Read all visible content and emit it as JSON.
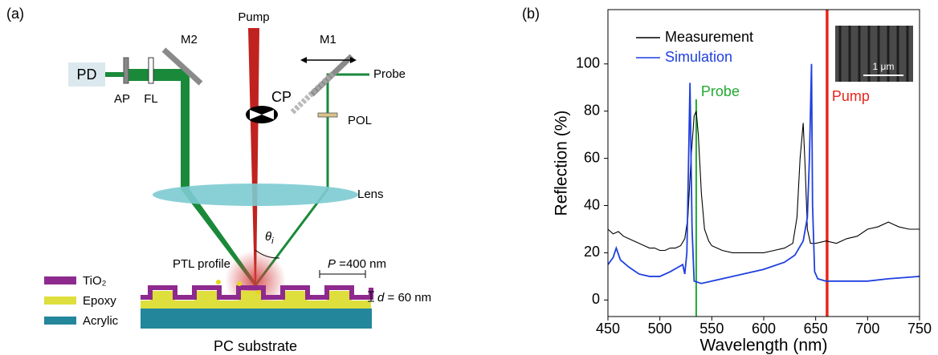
{
  "panel_a": {
    "panel_label": "(a)",
    "pump": "Pump",
    "probe": "Probe",
    "mirror_2": "M2",
    "mirror_1": "M1",
    "detector": "PD",
    "aperture": "AP",
    "filter": "FL",
    "chopper": "CP",
    "polarizer": "POL",
    "lens": "Lens",
    "angle": {
      "symbol": "θ",
      "subscript": "i"
    },
    "profile": "PTL profile",
    "period": {
      "var": "P",
      "text": " =400 nm"
    },
    "depth": {
      "var": "d",
      "text": " = 60 nm"
    },
    "layers": [
      "TiO₂",
      "Epoxy",
      "Acrylic"
    ],
    "substrate": "PC substrate"
  },
  "chart_data": {
    "type": "line",
    "panel_label": "(b)",
    "x_label": "Wavelength (nm)",
    "y_label": "Reflection (%)",
    "xlim": [
      450,
      750
    ],
    "xticks": [
      450,
      500,
      550,
      600,
      650,
      700,
      750
    ],
    "ylim": [
      -7,
      123
    ],
    "yticks": [
      0,
      20,
      40,
      60,
      80,
      100
    ],
    "legend": "upper left",
    "series": [
      {
        "name": "Measurement",
        "color": "#000000",
        "x": [
          450,
          455,
          460,
          465,
          470,
          475,
          480,
          485,
          490,
          495,
          500,
          505,
          510,
          515,
          520,
          524,
          527,
          530,
          533,
          535,
          537,
          540,
          543,
          547,
          550,
          555,
          560,
          570,
          580,
          590,
          600,
          610,
          620,
          628,
          632,
          635,
          638,
          640,
          642,
          645,
          650,
          660,
          670,
          680,
          690,
          700,
          710,
          720,
          725,
          730,
          740,
          750
        ],
        "values": [
          30,
          28,
          29,
          27,
          26,
          25,
          24,
          23,
          22,
          22,
          21,
          21,
          22,
          22,
          23,
          26,
          35,
          60,
          78,
          80,
          70,
          45,
          30,
          25,
          23,
          22,
          21,
          20,
          20,
          20,
          20,
          21,
          22,
          24,
          35,
          60,
          75,
          55,
          30,
          24,
          24,
          25,
          24,
          26,
          27,
          30,
          31,
          33,
          32,
          31,
          30,
          30
        ]
      },
      {
        "name": "Simulation",
        "color": "#1f3fe0",
        "x": [
          450,
          455,
          458,
          462,
          470,
          480,
          490,
          500,
          510,
          518,
          522,
          524,
          526,
          529,
          531,
          533,
          540,
          560,
          580,
          600,
          620,
          630,
          638,
          642,
          644,
          646,
          647,
          649,
          652,
          660,
          680,
          700,
          720,
          750
        ],
        "values": [
          15,
          18,
          22,
          17,
          14,
          11,
          10,
          10,
          12,
          14,
          15,
          11,
          20,
          92,
          30,
          8,
          7,
          9,
          11,
          13,
          16,
          19,
          25,
          35,
          60,
          100,
          40,
          12,
          9,
          8,
          8,
          8,
          9,
          10
        ]
      }
    ],
    "markers": [
      {
        "label": "Probe",
        "x": 535,
        "color": "#22aa33"
      },
      {
        "label": "Pump",
        "x": 661,
        "color": "#e8261c"
      }
    ],
    "inset_scale": "1 μm"
  }
}
